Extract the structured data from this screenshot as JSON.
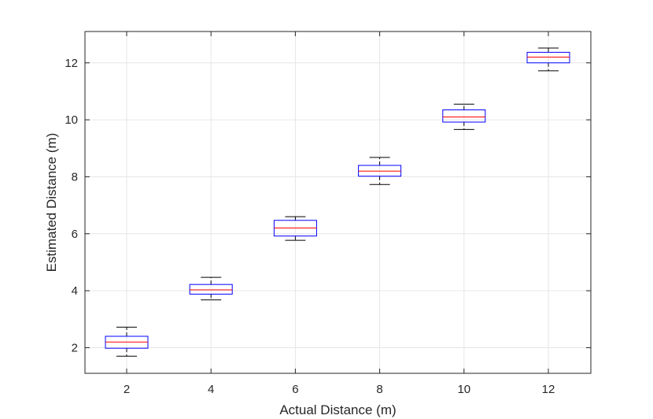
{
  "chart_data": {
    "type": "boxplot",
    "xlabel": "Actual Distance (m)",
    "ylabel": "Estimated Distance (m)",
    "categories": [
      "2",
      "4",
      "6",
      "8",
      "10",
      "12"
    ],
    "ylim": [
      1.1,
      13.1
    ],
    "y_ticks": [
      2,
      4,
      6,
      8,
      10,
      12
    ],
    "grid": true,
    "box_color": "#0000ff",
    "whisker_color": "#000000",
    "boxes": [
      {
        "category": "2",
        "whisker_low": 1.7,
        "q1": 1.98,
        "median": 2.2,
        "q3": 2.4,
        "whisker_high": 2.72
      },
      {
        "category": "4",
        "whisker_low": 3.68,
        "q1": 3.88,
        "median": 4.03,
        "q3": 4.22,
        "whisker_high": 4.47
      },
      {
        "category": "6",
        "whisker_low": 5.77,
        "q1": 5.92,
        "median": 6.2,
        "q3": 6.47,
        "whisker_high": 6.6
      },
      {
        "category": "8",
        "whisker_low": 7.73,
        "q1": 8.02,
        "median": 8.2,
        "q3": 8.4,
        "whisker_high": 8.68
      },
      {
        "category": "10",
        "whisker_low": 9.66,
        "q1": 9.92,
        "median": 10.1,
        "q3": 10.35,
        "whisker_high": 10.55
      },
      {
        "category": "12",
        "whisker_low": 11.72,
        "q1": 12.0,
        "median": 12.2,
        "q3": 12.37,
        "whisker_high": 12.52
      }
    ]
  }
}
